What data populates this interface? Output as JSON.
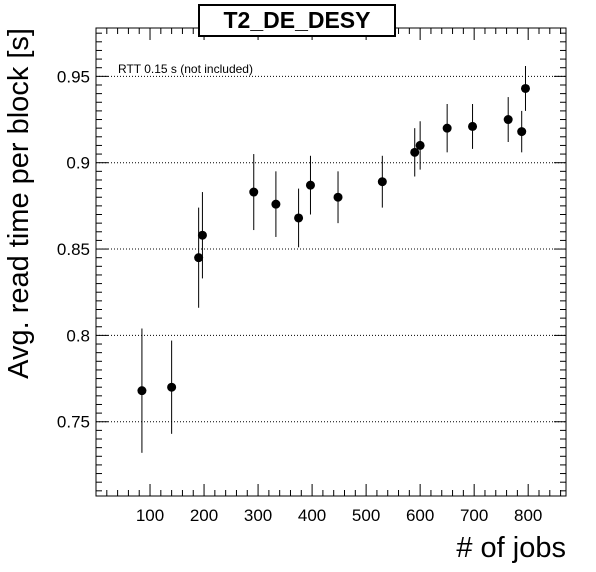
{
  "chart_data": {
    "type": "scatter",
    "title": "T2_DE_DESY",
    "xlabel": "# of jobs",
    "ylabel": "Avg. read time per block [s]",
    "annotation": "RTT 0.15 s (not included)",
    "xlim": [
      0,
      870
    ],
    "ylim": [
      0.707,
      0.978
    ],
    "xticks": [
      100,
      200,
      300,
      400,
      500,
      600,
      700,
      800
    ],
    "yticks": [
      0.75,
      0.8,
      0.85,
      0.9,
      0.95
    ],
    "ytick_labels": [
      "0.75",
      "0.8",
      "0.85",
      "0.9",
      "0.95"
    ],
    "grid": "horizontal dotted at major y ticks",
    "points": [
      {
        "x": 85,
        "y": 0.768,
        "err": 0.036
      },
      {
        "x": 140,
        "y": 0.77,
        "err": 0.027
      },
      {
        "x": 190,
        "y": 0.845,
        "err": 0.029
      },
      {
        "x": 197,
        "y": 0.858,
        "err": 0.025
      },
      {
        "x": 292,
        "y": 0.883,
        "err": 0.022
      },
      {
        "x": 333,
        "y": 0.876,
        "err": 0.019
      },
      {
        "x": 375,
        "y": 0.868,
        "err": 0.017
      },
      {
        "x": 397,
        "y": 0.887,
        "err": 0.017
      },
      {
        "x": 448,
        "y": 0.88,
        "err": 0.015
      },
      {
        "x": 530,
        "y": 0.889,
        "err": 0.015
      },
      {
        "x": 590,
        "y": 0.906,
        "err": 0.014
      },
      {
        "x": 600,
        "y": 0.91,
        "err": 0.014
      },
      {
        "x": 650,
        "y": 0.92,
        "err": 0.014
      },
      {
        "x": 697,
        "y": 0.921,
        "err": 0.013
      },
      {
        "x": 763,
        "y": 0.925,
        "err": 0.013
      },
      {
        "x": 788,
        "y": 0.918,
        "err": 0.012
      },
      {
        "x": 795,
        "y": 0.943,
        "err": 0.013
      }
    ]
  }
}
